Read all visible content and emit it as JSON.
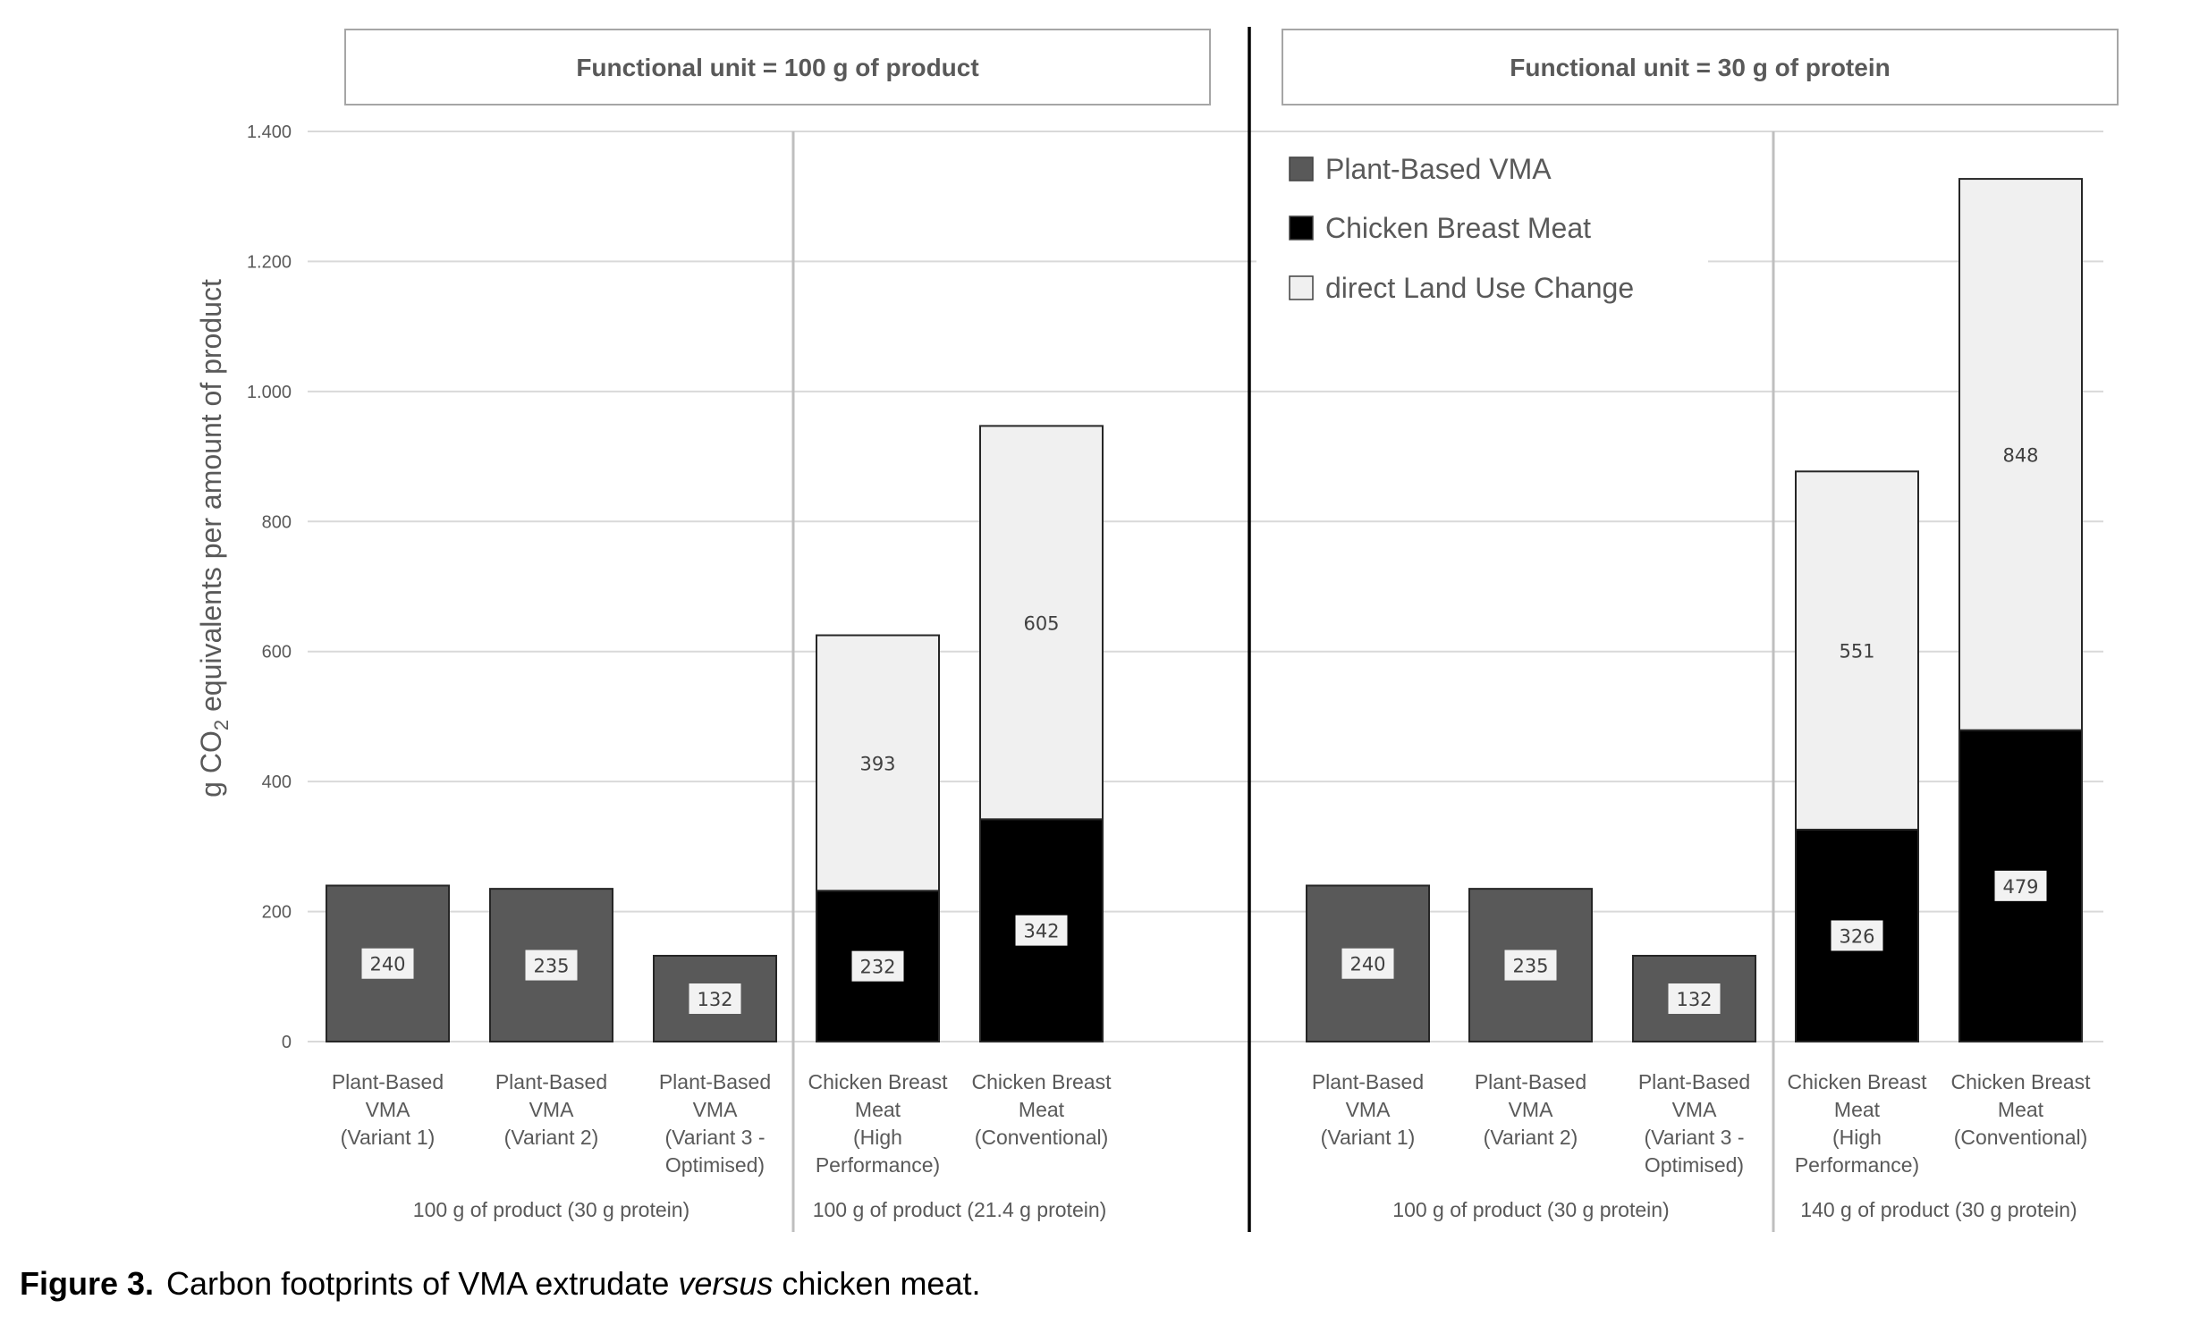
{
  "chart_data": {
    "type": "bar",
    "stacked": true,
    "ylabel": "g CO2 equivalents per amount of product",
    "ylabel_parts": {
      "pre": "g CO",
      "sub": "2",
      "post": " equivalents per amount of product"
    },
    "ylim": [
      0,
      1400
    ],
    "yticks": [
      0,
      200,
      400,
      600,
      800,
      1000,
      1200,
      1400
    ],
    "ytick_labels": [
      "0",
      "200",
      "400",
      "600",
      "800",
      "1.000",
      "1.200",
      "1.400"
    ],
    "grid": true,
    "legend_position": "top-left of right panel",
    "legend": [
      {
        "key": "vma",
        "label": "Plant-Based VMA",
        "color": "#595959"
      },
      {
        "key": "chicken",
        "label": "Chicken Breast Meat",
        "color": "#000000"
      },
      {
        "key": "dluc",
        "label": "direct Land Use Change",
        "color": "#f0f0f0"
      }
    ],
    "panels": [
      {
        "title": "Functional unit = 100 g of product",
        "groups": [
          {
            "label": "100 g of product (30 g protein)",
            "category_indices": [
              0,
              1,
              2
            ]
          },
          {
            "label": "100 g of product (21.4 g protein)",
            "category_indices": [
              3,
              4
            ]
          }
        ],
        "categories": [
          {
            "lines": [
              "Plant-Based",
              "VMA",
              "(Variant 1)"
            ],
            "segments": [
              {
                "series": "vma",
                "value": 240
              }
            ]
          },
          {
            "lines": [
              "Plant-Based",
              "VMA",
              "(Variant 2)"
            ],
            "segments": [
              {
                "series": "vma",
                "value": 235
              }
            ]
          },
          {
            "lines": [
              "Plant-Based",
              "VMA",
              "(Variant 3 -",
              "Optimised)"
            ],
            "segments": [
              {
                "series": "vma",
                "value": 132
              }
            ]
          },
          {
            "lines": [
              "Chicken Breast",
              "Meat",
              "(High",
              "Performance)"
            ],
            "segments": [
              {
                "series": "chicken",
                "value": 232
              },
              {
                "series": "dluc",
                "value": 393
              }
            ]
          },
          {
            "lines": [
              "Chicken Breast",
              "Meat",
              "(Conventional)"
            ],
            "segments": [
              {
                "series": "chicken",
                "value": 342
              },
              {
                "series": "dluc",
                "value": 605
              }
            ]
          }
        ]
      },
      {
        "title": "Functional unit = 30 g of protein",
        "groups": [
          {
            "label": "100 g of product (30 g protein)",
            "category_indices": [
              0,
              1,
              2
            ]
          },
          {
            "label": "140 g of product (30 g protein)",
            "category_indices": [
              3,
              4
            ]
          }
        ],
        "categories": [
          {
            "lines": [
              "Plant-Based",
              "VMA",
              "(Variant 1)"
            ],
            "segments": [
              {
                "series": "vma",
                "value": 240
              }
            ]
          },
          {
            "lines": [
              "Plant-Based",
              "VMA",
              "(Variant 2)"
            ],
            "segments": [
              {
                "series": "vma",
                "value": 235
              }
            ]
          },
          {
            "lines": [
              "Plant-Based",
              "VMA",
              "(Variant 3 -",
              "Optimised)"
            ],
            "segments": [
              {
                "series": "vma",
                "value": 132
              }
            ]
          },
          {
            "lines": [
              "Chicken Breast",
              "Meat",
              "(High",
              "Performance)"
            ],
            "segments": [
              {
                "series": "chicken",
                "value": 326
              },
              {
                "series": "dluc",
                "value": 551
              }
            ]
          },
          {
            "lines": [
              "Chicken Breast",
              "Meat",
              "(Conventional)"
            ],
            "segments": [
              {
                "series": "chicken",
                "value": 479
              },
              {
                "series": "dluc",
                "value": 848
              }
            ]
          }
        ]
      }
    ]
  },
  "caption": {
    "figure_number": "Figure 3.",
    "text_before": "Carbon footprints of VMA extrudate ",
    "text_italic": "versus",
    "text_after": " chicken meat."
  }
}
